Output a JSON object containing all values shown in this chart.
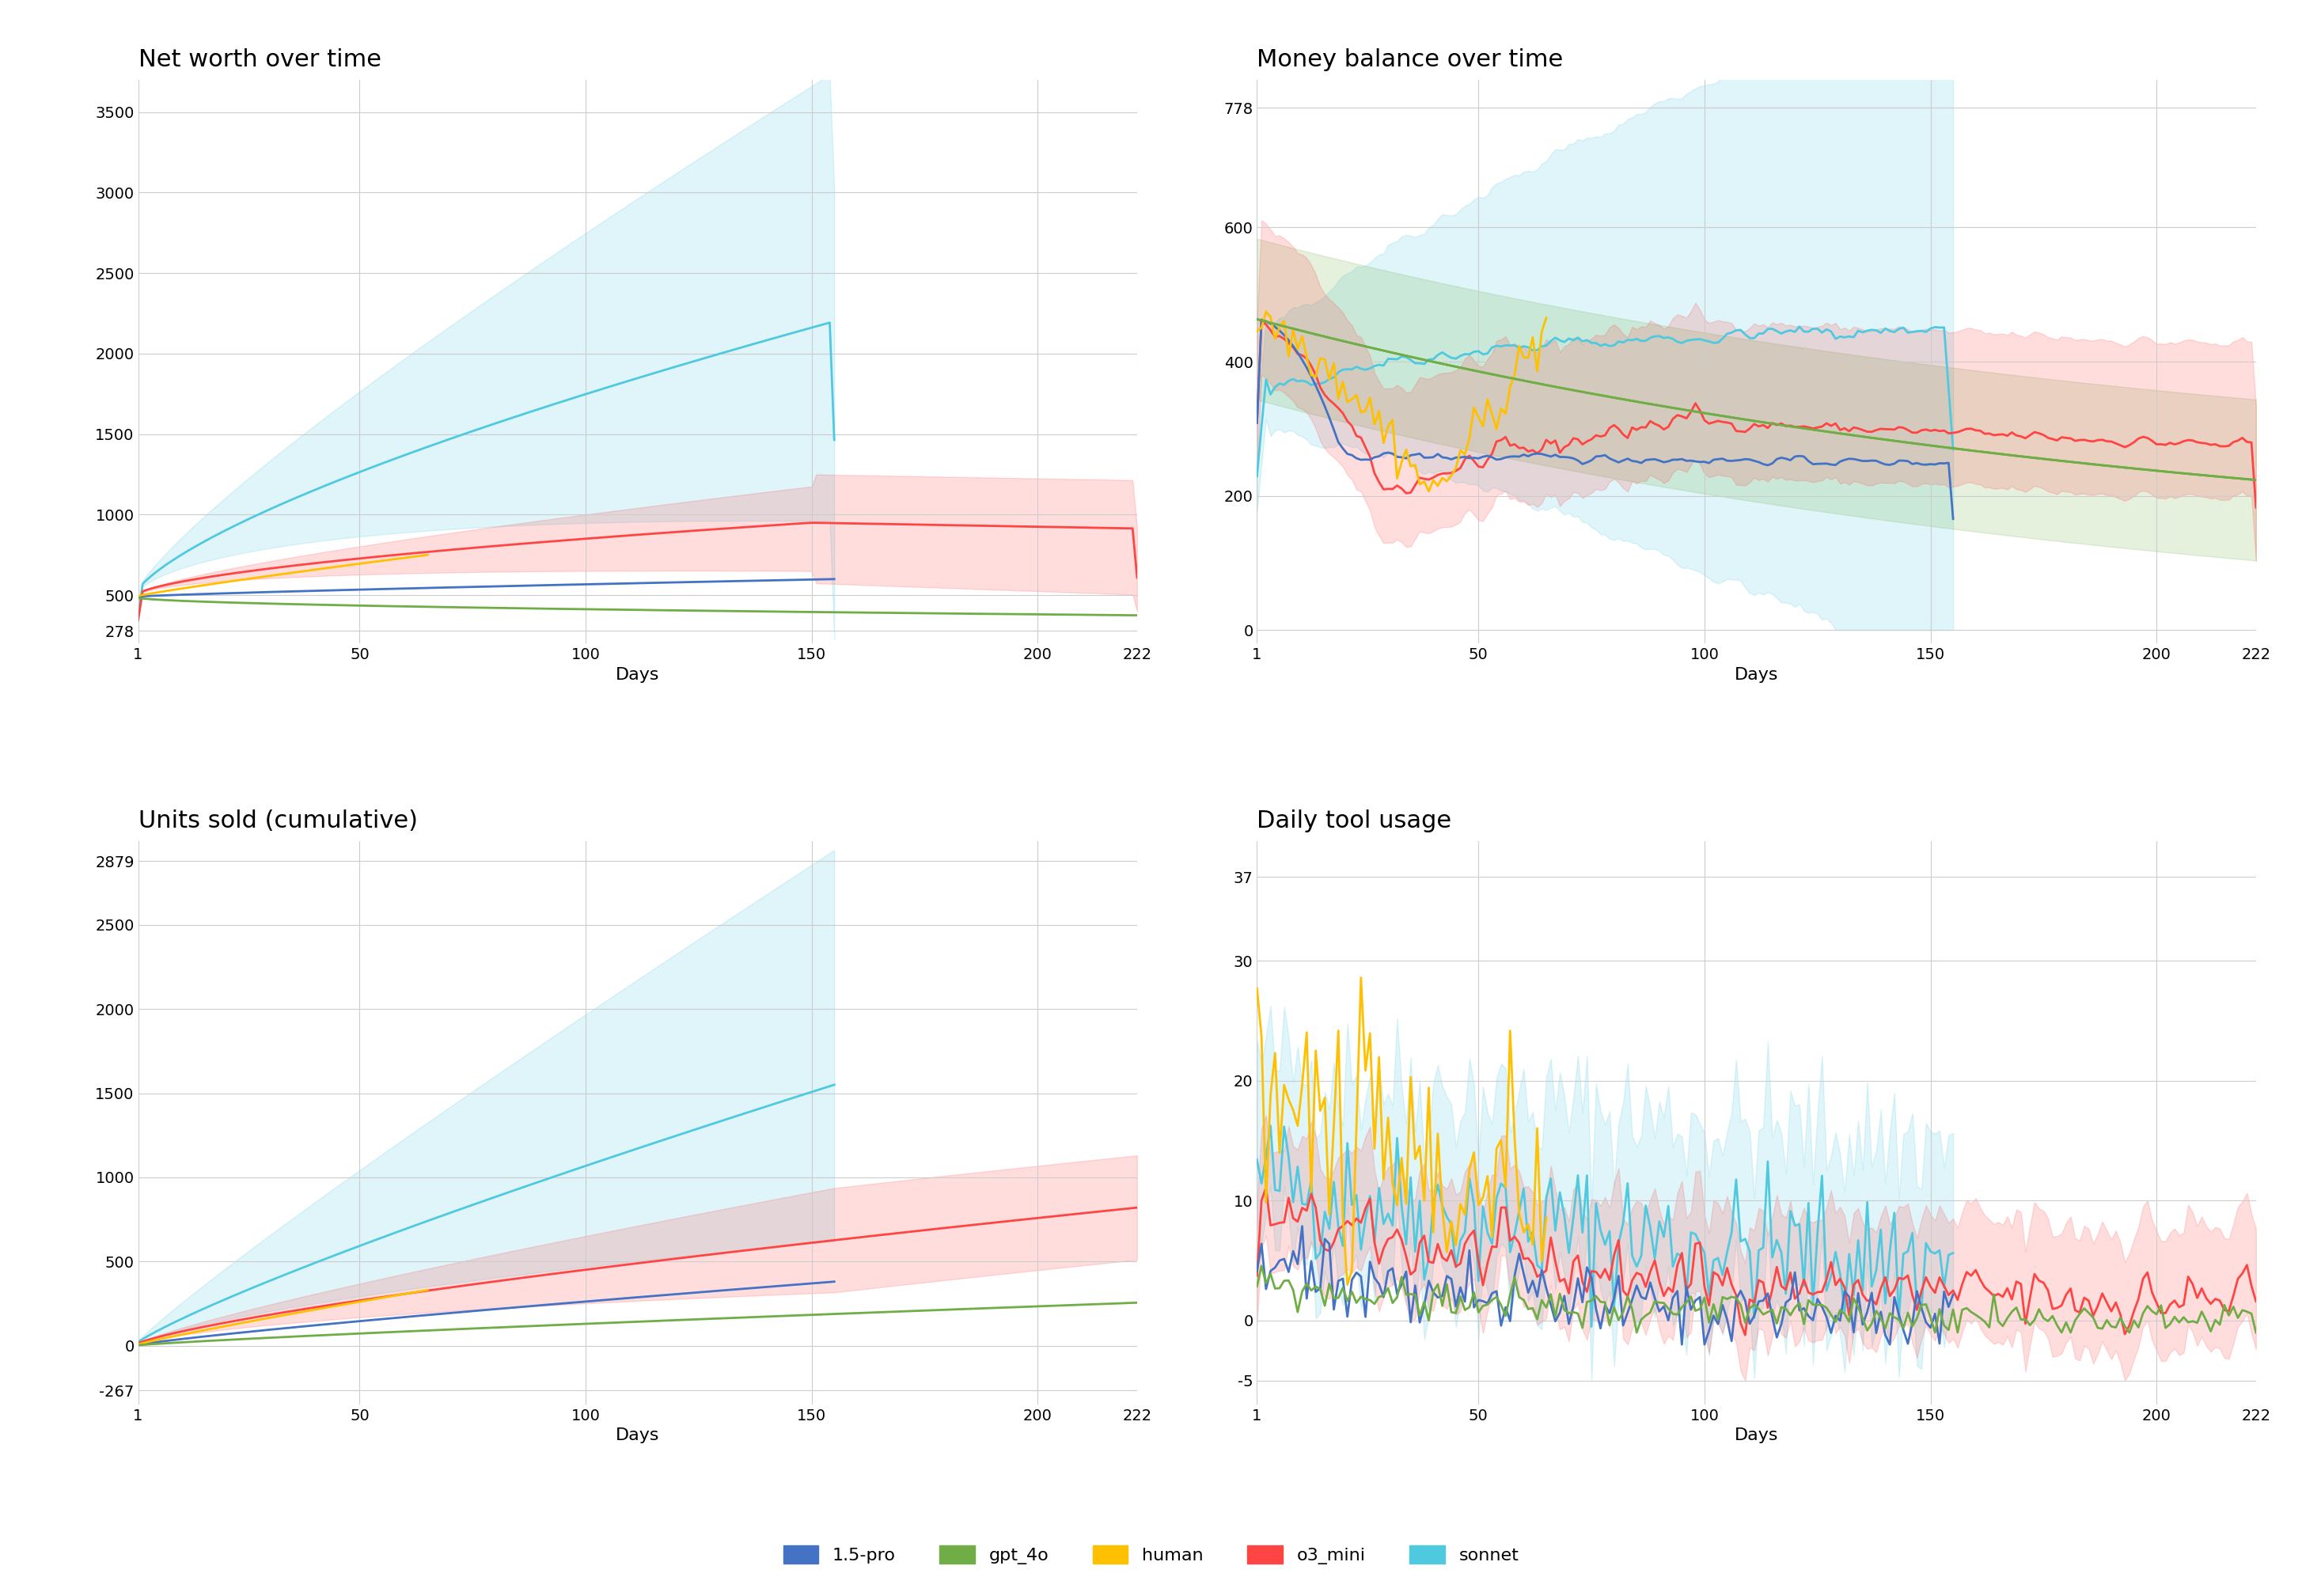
{
  "titles": [
    "Net worth over time",
    "Money balance over time",
    "Units sold (cumulative)",
    "Daily tool usage"
  ],
  "xlabel": "Days",
  "x_ticks": [
    1,
    50,
    100,
    150,
    200,
    222
  ],
  "colors": {
    "1.5-pro": "#4472C4",
    "gpt_4o": "#70AD47",
    "human": "#FFC000",
    "o3_mini": "#FF4444",
    "sonnet": "#4EC9E0"
  },
  "legend_labels": [
    "1.5-pro",
    "gpt_4o",
    "human",
    "o3_mini",
    "sonnet"
  ],
  "background_color": "#ffffff",
  "grid_color": "#cccccc",
  "title_fontsize": 22,
  "label_fontsize": 16,
  "tick_fontsize": 14,
  "legend_fontsize": 16
}
